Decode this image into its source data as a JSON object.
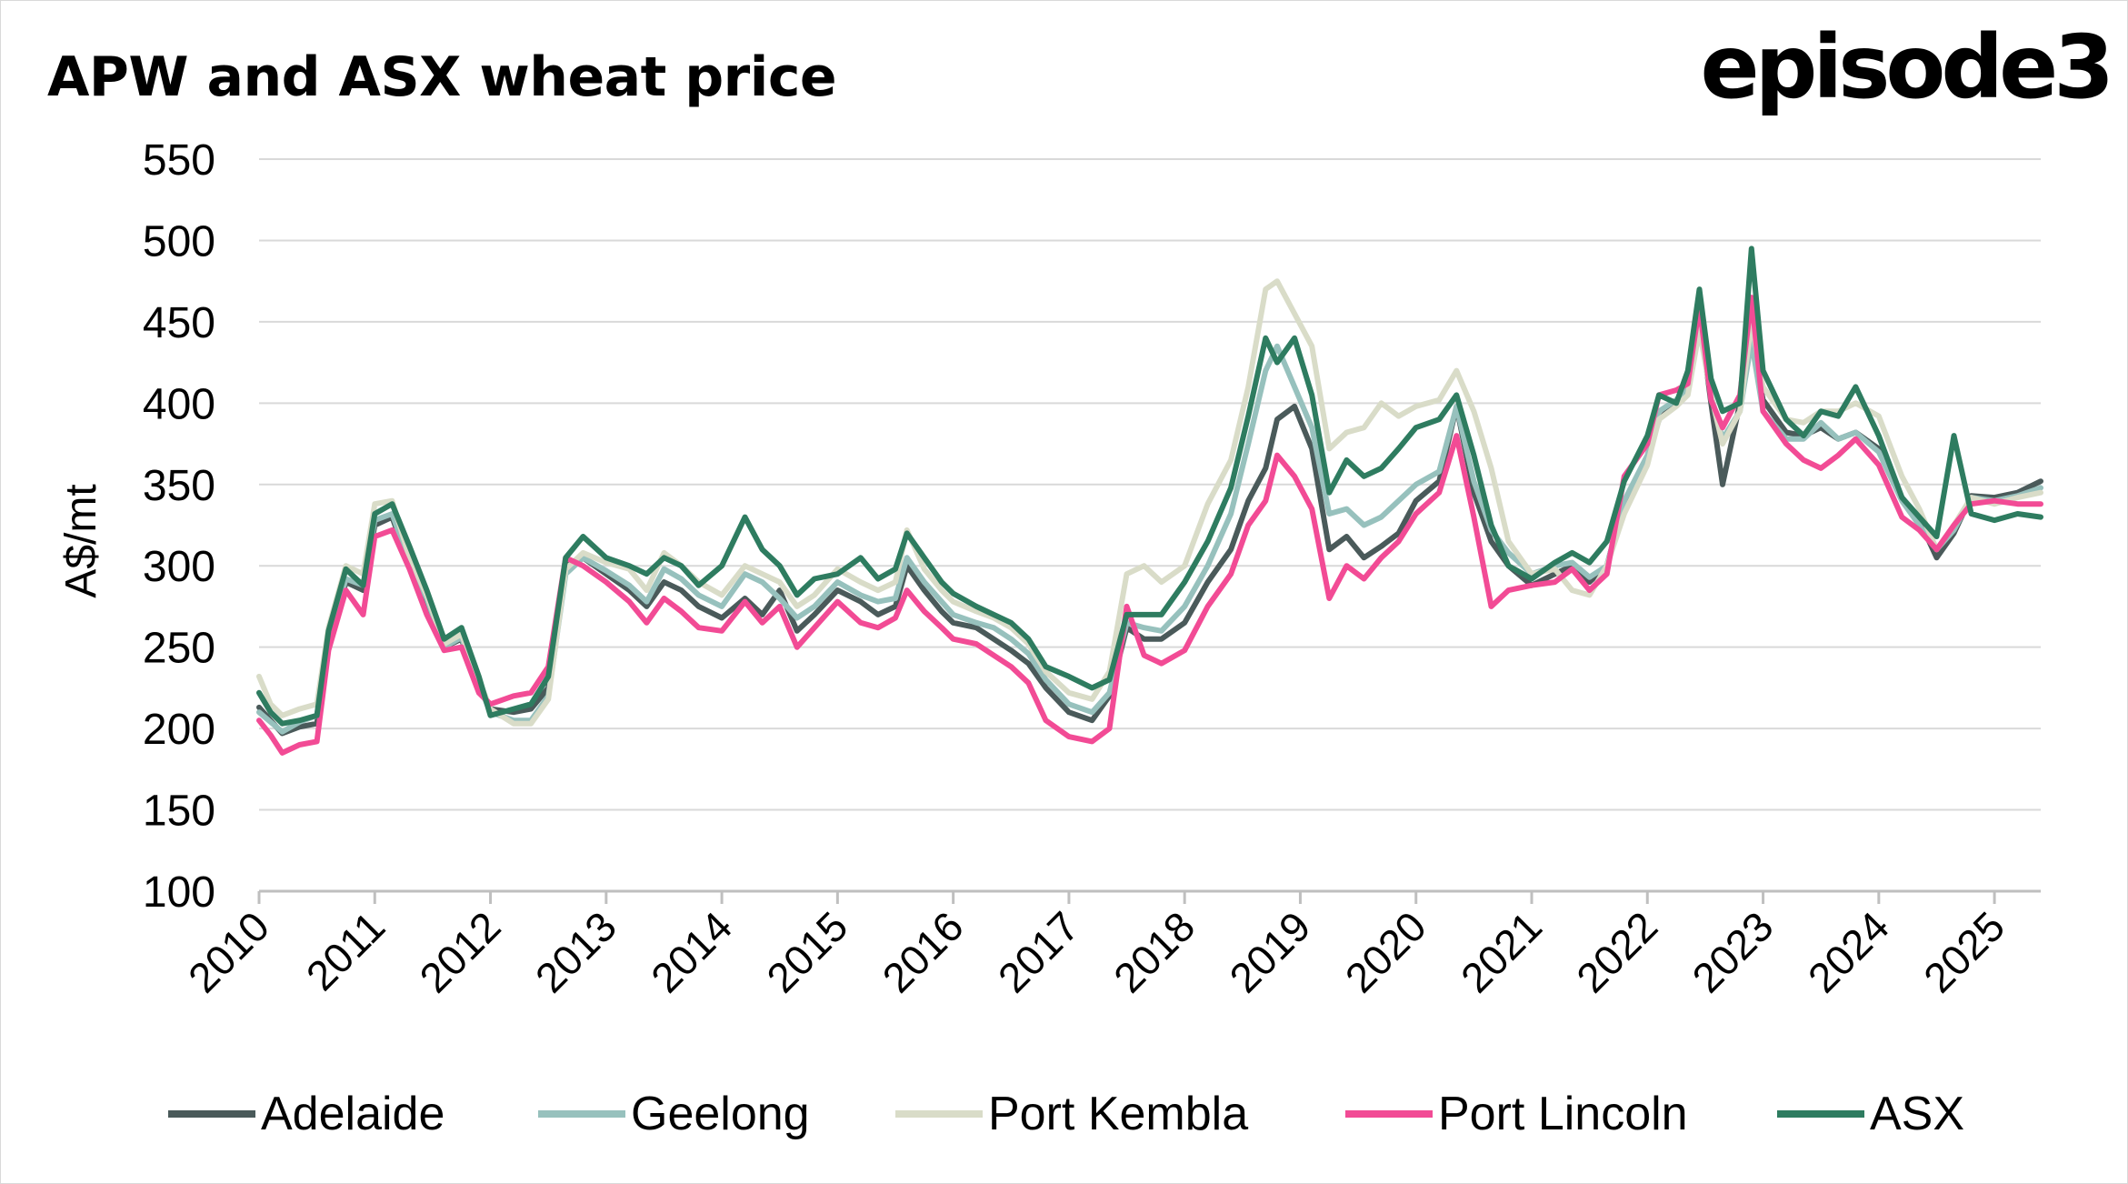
{
  "title": "APW and ASX wheat price",
  "brand": "episode3",
  "chart_data": {
    "type": "line",
    "title": "APW and ASX wheat price",
    "xlabel": "",
    "ylabel": "A$/mt",
    "ylim": [
      100,
      550
    ],
    "yticks": [
      "100",
      "150",
      "200",
      "250",
      "300",
      "350",
      "400",
      "450",
      "500",
      "550"
    ],
    "xlim": [
      2010,
      2025.4
    ],
    "xticks": [
      "2010",
      "2011",
      "2012",
      "2013",
      "2014",
      "2015",
      "2016",
      "2017",
      "2018",
      "2019",
      "2020",
      "2021",
      "2022",
      "2023",
      "2024",
      "2025"
    ],
    "grid": true,
    "legend_position": "bottom",
    "x": [
      2010.0,
      2010.1,
      2010.2,
      2010.35,
      2010.5,
      2010.6,
      2010.75,
      2010.9,
      2011.0,
      2011.15,
      2011.3,
      2011.45,
      2011.6,
      2011.75,
      2011.9,
      2012.0,
      2012.2,
      2012.35,
      2012.5,
      2012.65,
      2012.8,
      2013.0,
      2013.2,
      2013.35,
      2013.5,
      2013.65,
      2013.8,
      2014.0,
      2014.2,
      2014.35,
      2014.5,
      2014.65,
      2014.8,
      2015.0,
      2015.2,
      2015.35,
      2015.5,
      2015.6,
      2015.75,
      2015.9,
      2016.0,
      2016.2,
      2016.35,
      2016.5,
      2016.65,
      2016.8,
      2017.0,
      2017.2,
      2017.35,
      2017.5,
      2017.65,
      2017.8,
      2018.0,
      2018.2,
      2018.4,
      2018.55,
      2018.7,
      2018.8,
      2018.95,
      2019.1,
      2019.25,
      2019.4,
      2019.55,
      2019.7,
      2019.85,
      2020.0,
      2020.2,
      2020.35,
      2020.5,
      2020.65,
      2020.8,
      2021.0,
      2021.2,
      2021.35,
      2021.5,
      2021.65,
      2021.8,
      2022.0,
      2022.1,
      2022.25,
      2022.35,
      2022.45,
      2022.55,
      2022.65,
      2022.8,
      2022.9,
      2023.0,
      2023.2,
      2023.35,
      2023.5,
      2023.65,
      2023.8,
      2024.0,
      2024.2,
      2024.35,
      2024.5,
      2024.65,
      2024.8,
      2025.0,
      2025.2,
      2025.4
    ],
    "series": [
      {
        "name": "Adelaide",
        "color": "#4a5a5a",
        "values": [
          213,
          205,
          197,
          201,
          203,
          250,
          290,
          285,
          325,
          330,
          300,
          275,
          250,
          255,
          225,
          212,
          210,
          212,
          225,
          300,
          305,
          295,
          285,
          275,
          290,
          285,
          275,
          268,
          280,
          270,
          285,
          260,
          270,
          285,
          278,
          270,
          275,
          300,
          285,
          272,
          265,
          262,
          255,
          248,
          240,
          225,
          210,
          205,
          220,
          262,
          255,
          255,
          265,
          290,
          310,
          340,
          360,
          390,
          398,
          372,
          310,
          318,
          305,
          312,
          320,
          340,
          352,
          398,
          345,
          315,
          300,
          288,
          295,
          300,
          290,
          300,
          340,
          365,
          390,
          400,
          410,
          455,
          400,
          350,
          400,
          440,
          402,
          382,
          380,
          385,
          378,
          382,
          372,
          342,
          328,
          305,
          320,
          343,
          342,
          345,
          352
        ]
      },
      {
        "name": "Geelong",
        "color": "#97c1bd",
        "values": [
          210,
          204,
          198,
          204,
          208,
          255,
          292,
          288,
          328,
          332,
          302,
          280,
          250,
          256,
          227,
          210,
          205,
          205,
          220,
          295,
          305,
          297,
          288,
          278,
          298,
          292,
          282,
          275,
          295,
          290,
          280,
          268,
          275,
          290,
          282,
          278,
          280,
          305,
          290,
          278,
          270,
          265,
          262,
          255,
          246,
          230,
          215,
          210,
          222,
          265,
          262,
          260,
          275,
          300,
          332,
          375,
          420,
          435,
          410,
          385,
          332,
          335,
          325,
          330,
          340,
          350,
          358,
          398,
          352,
          322,
          308,
          295,
          300,
          302,
          293,
          300,
          340,
          368,
          395,
          402,
          410,
          458,
          405,
          378,
          395,
          438,
          395,
          378,
          378,
          388,
          378,
          382,
          370,
          340,
          325,
          310,
          322,
          342,
          340,
          343,
          348
        ]
      },
      {
        "name": "Port Kembla",
        "color": "#d9dcc8",
        "values": [
          232,
          215,
          208,
          212,
          215,
          262,
          300,
          295,
          338,
          340,
          305,
          282,
          252,
          258,
          230,
          212,
          203,
          203,
          218,
          298,
          308,
          302,
          298,
          285,
          308,
          300,
          290,
          282,
          300,
          295,
          290,
          275,
          282,
          298,
          290,
          285,
          290,
          322,
          298,
          285,
          278,
          272,
          268,
          262,
          252,
          235,
          222,
          218,
          235,
          295,
          300,
          290,
          300,
          338,
          365,
          410,
          470,
          475,
          455,
          435,
          372,
          382,
          385,
          400,
          392,
          398,
          402,
          420,
          395,
          360,
          315,
          295,
          298,
          285,
          282,
          300,
          332,
          362,
          390,
          398,
          405,
          445,
          405,
          375,
          395,
          450,
          410,
          390,
          388,
          395,
          395,
          400,
          392,
          355,
          335,
          310,
          325,
          342,
          338,
          342,
          345
        ]
      },
      {
        "name": "Port Lincoln",
        "color": "#f24b95",
        "values": [
          205,
          196,
          185,
          190,
          192,
          248,
          285,
          270,
          318,
          322,
          298,
          270,
          248,
          250,
          222,
          215,
          220,
          222,
          238,
          305,
          300,
          290,
          278,
          265,
          280,
          272,
          262,
          260,
          278,
          265,
          275,
          250,
          262,
          278,
          265,
          262,
          268,
          285,
          272,
          262,
          255,
          252,
          245,
          238,
          228,
          205,
          195,
          192,
          200,
          275,
          245,
          240,
          248,
          275,
          295,
          325,
          340,
          368,
          355,
          335,
          280,
          300,
          292,
          305,
          315,
          332,
          345,
          380,
          330,
          275,
          285,
          288,
          290,
          298,
          285,
          295,
          355,
          375,
          405,
          408,
          412,
          460,
          402,
          385,
          405,
          465,
          395,
          375,
          365,
          360,
          368,
          378,
          362,
          330,
          322,
          310,
          325,
          338,
          340,
          338,
          338
        ]
      },
      {
        "name": "ASX",
        "color": "#2e7c60",
        "values": [
          222,
          210,
          203,
          205,
          208,
          260,
          298,
          288,
          332,
          338,
          312,
          285,
          255,
          262,
          232,
          208,
          212,
          215,
          232,
          305,
          318,
          305,
          300,
          295,
          305,
          300,
          288,
          300,
          330,
          310,
          300,
          282,
          292,
          295,
          305,
          292,
          298,
          320,
          305,
          290,
          283,
          275,
          270,
          265,
          255,
          238,
          232,
          225,
          230,
          270,
          270,
          270,
          290,
          315,
          348,
          392,
          440,
          425,
          440,
          405,
          345,
          365,
          355,
          360,
          372,
          385,
          390,
          405,
          368,
          325,
          300,
          292,
          302,
          308,
          302,
          315,
          352,
          380,
          405,
          400,
          420,
          470,
          415,
          395,
          400,
          495,
          420,
          390,
          380,
          395,
          392,
          410,
          380,
          342,
          330,
          318,
          380,
          332,
          328,
          332,
          330
        ]
      }
    ]
  }
}
